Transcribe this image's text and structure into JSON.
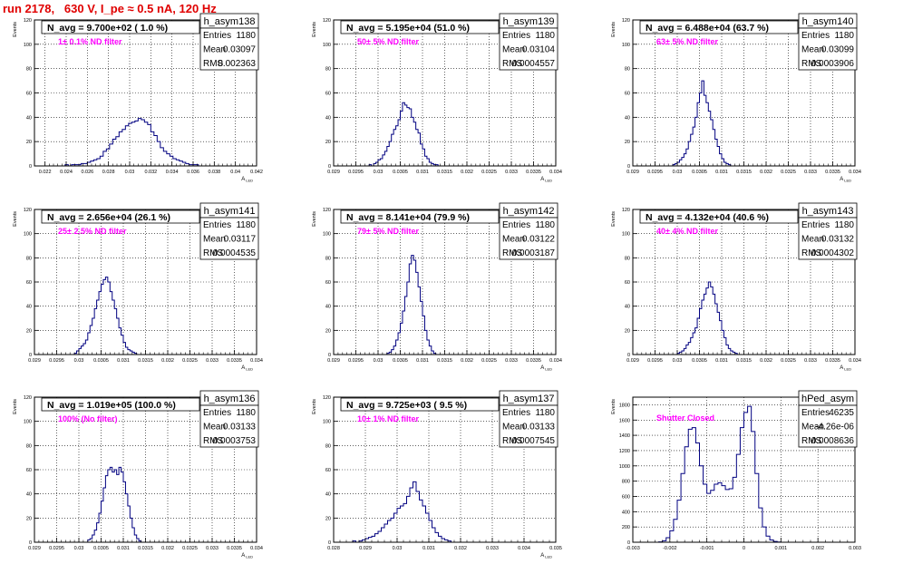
{
  "page_title": "run 2178,   630 V, I_pe ≈ 0.5 nA, 120 Hz",
  "stats_labels": {
    "entries": "Entries",
    "mean": "Mean",
    "rms": "RMS"
  },
  "colors": {
    "histogram": "#000080",
    "title": "#e00000",
    "annotation": "#ff00ff",
    "grid": "#000000"
  },
  "chart_data": [
    {
      "type": "histogram",
      "name": "h_asym138",
      "title": "N_avg = 9.700e+02 ( 1.0 %)",
      "annotation": "1± 0.1% ND filter",
      "stats": {
        "entries": "1180",
        "mean": "0.03097",
        "rms": "0.002363"
      },
      "xlabel": "A_LED",
      "ylabel": "Events",
      "xlim": [
        0.021,
        0.042
      ],
      "ylim": [
        0,
        120
      ],
      "xticks": [
        0.022,
        0.024,
        0.026,
        0.028,
        0.03,
        0.032,
        0.034,
        0.036,
        0.038,
        0.04,
        0.042
      ],
      "xtick_labels": [
        "0.022",
        "0.024",
        "0.026",
        "0.028",
        "0.03",
        "0.032",
        "0.034",
        "0.036",
        "0.038",
        "0.04",
        "0.042"
      ],
      "yticks": [
        0,
        20,
        40,
        60,
        80,
        100,
        120
      ],
      "yticks_labels": [
        "0",
        "20",
        "40",
        "60",
        "80",
        "100",
        "120"
      ],
      "bins": {
        "start": 0.0236,
        "width": 0.0003,
        "counts": [
          0,
          1,
          0,
          1,
          1,
          1,
          2,
          2,
          3,
          4,
          5,
          6,
          8,
          12,
          14,
          18,
          22,
          24,
          28,
          30,
          33,
          35,
          36,
          37,
          39,
          38,
          36,
          34,
          28,
          25,
          20,
          15,
          12,
          10,
          8,
          6,
          5,
          4,
          3,
          2,
          1,
          1,
          1,
          0,
          0
        ]
      }
    },
    {
      "type": "histogram",
      "name": "h_asym139",
      "title": "N_avg = 5.195e+04 (51.0 %)",
      "annotation": "50± 5% ND filter",
      "stats": {
        "entries": "1180",
        "mean": "0.03104",
        "rms": "0.0004557"
      },
      "xlabel": "A_LED",
      "ylabel": "Events",
      "xlim": [
        0.029,
        0.034
      ],
      "ylim": [
        0,
        120
      ],
      "xticks": [
        0.029,
        0.0295,
        0.03,
        0.0305,
        0.031,
        0.0315,
        0.032,
        0.0325,
        0.033,
        0.0335,
        0.034
      ],
      "xtick_labels": [
        "0.029",
        "0.0295",
        "0.03",
        "0.0305",
        "0.031",
        "0.0315",
        "0.032",
        "0.0325",
        "0.033",
        "0.0335",
        "0.034"
      ],
      "yticks": [
        0,
        20,
        40,
        60,
        80,
        100,
        120
      ],
      "yticks_labels": [
        "0",
        "20",
        "40",
        "60",
        "80",
        "100",
        "120"
      ],
      "bins": {
        "start": 0.0298,
        "width": 5e-05,
        "counts": [
          1,
          0,
          2,
          3,
          5,
          6,
          9,
          12,
          16,
          20,
          26,
          30,
          33,
          38,
          45,
          52,
          50,
          48,
          47,
          40,
          36,
          30,
          27,
          18,
          14,
          8,
          6,
          3,
          2,
          1,
          1,
          0
        ]
      }
    },
    {
      "type": "histogram",
      "name": "h_asym140",
      "title": "N_avg = 6.488e+04 (63.7 %)",
      "annotation": "63± 5% ND filter",
      "stats": {
        "entries": "1180",
        "mean": "0.03099",
        "rms": "0.0003906"
      },
      "xlabel": "A_LED",
      "ylabel": "Events",
      "xlim": [
        0.029,
        0.034
      ],
      "ylim": [
        0,
        120
      ],
      "xticks": [
        0.029,
        0.0295,
        0.03,
        0.0305,
        0.031,
        0.0315,
        0.032,
        0.0325,
        0.033,
        0.0335,
        0.034
      ],
      "xtick_labels": [
        "0.029",
        "0.0295",
        "0.03",
        "0.0305",
        "0.031",
        "0.0315",
        "0.032",
        "0.0325",
        "0.033",
        "0.0335",
        "0.034"
      ],
      "yticks": [
        0,
        20,
        40,
        60,
        80,
        100,
        120
      ],
      "yticks_labels": [
        "0",
        "20",
        "40",
        "60",
        "80",
        "100",
        "120"
      ],
      "bins": {
        "start": 0.0299,
        "width": 5e-05,
        "counts": [
          1,
          2,
          3,
          5,
          7,
          10,
          14,
          20,
          26,
          32,
          40,
          52,
          60,
          70,
          58,
          52,
          45,
          38,
          30,
          22,
          16,
          10,
          6,
          3,
          2,
          1,
          0
        ]
      }
    },
    {
      "type": "histogram",
      "name": "h_asym141",
      "title": "N_avg = 2.656e+04 (26.1 %)",
      "annotation": "25± 2.5% ND filter",
      "stats": {
        "entries": "1180",
        "mean": "0.03117",
        "rms": "0.0004535"
      },
      "xlabel": "A_LED",
      "ylabel": "Events",
      "xlim": [
        0.029,
        0.034
      ],
      "ylim": [
        0,
        120
      ],
      "xticks": [
        0.029,
        0.0295,
        0.03,
        0.0305,
        0.031,
        0.0315,
        0.032,
        0.0325,
        0.033,
        0.0335,
        0.034
      ],
      "xtick_labels": [
        "0.029",
        "0.0295",
        "0.03",
        "0.0305",
        "0.031",
        "0.0315",
        "0.032",
        "0.0325",
        "0.033",
        "0.0335",
        "0.034"
      ],
      "yticks": [
        0,
        20,
        40,
        60,
        80,
        100,
        120
      ],
      "yticks_labels": [
        "0",
        "20",
        "40",
        "60",
        "80",
        "100",
        "120"
      ],
      "bins": {
        "start": 0.0299,
        "width": 5e-05,
        "counts": [
          1,
          3,
          5,
          7,
          9,
          12,
          18,
          24,
          30,
          38,
          45,
          52,
          58,
          62,
          64,
          60,
          52,
          45,
          38,
          30,
          22,
          16,
          10,
          6,
          4,
          3,
          2,
          1,
          0
        ]
      }
    },
    {
      "type": "histogram",
      "name": "h_asym142",
      "title": "N_avg = 8.141e+04 (79.9 %)",
      "annotation": "79± 5% ND filter",
      "stats": {
        "entries": "1180",
        "mean": "0.03122",
        "rms": "0.0003187"
      },
      "xlabel": "A_LED",
      "ylabel": "Events",
      "xlim": [
        0.029,
        0.034
      ],
      "ylim": [
        0,
        120
      ],
      "xticks": [
        0.029,
        0.0295,
        0.03,
        0.0305,
        0.031,
        0.0315,
        0.032,
        0.0325,
        0.033,
        0.0335,
        0.034
      ],
      "xtick_labels": [
        "0.029",
        "0.0295",
        "0.03",
        "0.0305",
        "0.031",
        "0.0315",
        "0.032",
        "0.0325",
        "0.033",
        "0.0335",
        "0.034"
      ],
      "yticks": [
        0,
        20,
        40,
        60,
        80,
        100,
        120
      ],
      "yticks_labels": [
        "0",
        "20",
        "40",
        "60",
        "80",
        "100",
        "120"
      ],
      "bins": {
        "start": 0.0302,
        "width": 5e-05,
        "counts": [
          1,
          2,
          4,
          7,
          12,
          18,
          26,
          36,
          48,
          60,
          75,
          82,
          78,
          68,
          56,
          44,
          32,
          20,
          12,
          7,
          3,
          1,
          0
        ]
      }
    },
    {
      "type": "histogram",
      "name": "h_asym143",
      "title": "N_avg = 4.132e+04 (40.6 %)",
      "annotation": "40± 4% ND filter",
      "stats": {
        "entries": "1180",
        "mean": "0.03132",
        "rms": "0.0004302"
      },
      "xlabel": "A_LED",
      "ylabel": "Events",
      "xlim": [
        0.029,
        0.034
      ],
      "ylim": [
        0,
        120
      ],
      "xticks": [
        0.029,
        0.0295,
        0.03,
        0.0305,
        0.031,
        0.0315,
        0.032,
        0.0325,
        0.033,
        0.0335,
        0.034
      ],
      "xtick_labels": [
        "0.029",
        "0.0295",
        "0.03",
        "0.0305",
        "0.031",
        "0.0315",
        "0.032",
        "0.0325",
        "0.033",
        "0.0335",
        "0.034"
      ],
      "yticks": [
        0,
        20,
        40,
        60,
        80,
        100,
        120
      ],
      "yticks_labels": [
        "0",
        "20",
        "40",
        "60",
        "80",
        "100",
        "120"
      ],
      "bins": {
        "start": 0.03,
        "width": 5e-05,
        "counts": [
          1,
          2,
          3,
          5,
          8,
          10,
          14,
          18,
          22,
          30,
          38,
          45,
          50,
          55,
          60,
          56,
          50,
          42,
          35,
          28,
          20,
          14,
          8,
          5,
          3,
          2,
          1,
          0
        ]
      }
    },
    {
      "type": "histogram",
      "name": "h_asym136",
      "title": "N_avg = 1.019e+05 (100.0 %)",
      "annotation": "100% (No filter)",
      "stats": {
        "entries": "1180",
        "mean": "0.03133",
        "rms": "0.0003753"
      },
      "xlabel": "A_LED",
      "ylabel": "Events",
      "xlim": [
        0.029,
        0.034
      ],
      "ylim": [
        0,
        120
      ],
      "xticks": [
        0.029,
        0.0295,
        0.03,
        0.0305,
        0.031,
        0.0315,
        0.032,
        0.0325,
        0.033,
        0.0335,
        0.034
      ],
      "xtick_labels": [
        "0.029",
        "0.0295",
        "0.03",
        "0.0305",
        "0.031",
        "0.0315",
        "0.032",
        "0.0325",
        "0.033",
        "0.0335",
        "0.034"
      ],
      "yticks": [
        0,
        20,
        40,
        60,
        80,
        100,
        120
      ],
      "yticks_labels": [
        "0",
        "20",
        "40",
        "60",
        "80",
        "100",
        "120"
      ],
      "bins": {
        "start": 0.0302,
        "width": 5e-05,
        "counts": [
          2,
          3,
          6,
          10,
          16,
          24,
          34,
          45,
          55,
          60,
          62,
          58,
          60,
          56,
          62,
          58,
          50,
          40,
          30,
          20,
          12,
          6,
          3,
          1,
          0
        ]
      }
    },
    {
      "type": "histogram",
      "name": "h_asym137",
      "title": "N_avg = 9.725e+03 ( 9.5 %)",
      "annotation": "10± 1% ND filter",
      "stats": {
        "entries": "1180",
        "mean": "0.03133",
        "rms": "0.0007545"
      },
      "xlabel": "A_LED",
      "ylabel": "Events",
      "xlim": [
        0.028,
        0.035
      ],
      "ylim": [
        0,
        120
      ],
      "xticks": [
        0.028,
        0.029,
        0.03,
        0.031,
        0.032,
        0.033,
        0.034,
        0.035
      ],
      "xtick_labels": [
        "0.028",
        "0.029",
        "0.03",
        "0.031",
        "0.032",
        "0.033",
        "0.034",
        "0.035"
      ],
      "yticks": [
        0,
        20,
        40,
        60,
        80,
        100,
        120
      ],
      "yticks_labels": [
        "0",
        "20",
        "40",
        "60",
        "80",
        "100",
        "120"
      ],
      "bins": {
        "start": 0.0286,
        "width": 0.0001,
        "counts": [
          1,
          0,
          1,
          2,
          3,
          4,
          5,
          7,
          9,
          12,
          15,
          18,
          20,
          24,
          28,
          30,
          32,
          38,
          45,
          50,
          42,
          35,
          30,
          24,
          18,
          12,
          8,
          5,
          3,
          2,
          1,
          0
        ]
      }
    },
    {
      "type": "histogram",
      "name": "hPed_asym",
      "title": "",
      "annotation": "Shutter Closed",
      "stats": {
        "entries": "46235",
        "mean": "-4.26e-06",
        "rms": "0.0008636"
      },
      "xlabel": "",
      "ylabel": "Events",
      "xlim": [
        -0.003,
        0.003
      ],
      "ylim": [
        0,
        1900
      ],
      "xticks": [
        -0.003,
        -0.002,
        -0.001,
        0,
        0.001,
        0.002,
        0.003
      ],
      "xtick_labels": [
        "-0.003",
        "-0.002",
        "-0.001",
        "0",
        "0.001",
        "0.002",
        "0.003"
      ],
      "yticks": [
        0,
        200,
        400,
        600,
        800,
        1000,
        1200,
        1400,
        1600,
        1800
      ],
      "yticks_labels": [
        "0",
        "200",
        "400",
        "600",
        "800",
        "1000",
        "1200",
        "1400",
        "1600",
        "1800"
      ],
      "bins": {
        "start": -0.0023,
        "width": 0.0001,
        "counts": [
          5,
          20,
          60,
          150,
          300,
          550,
          900,
          1250,
          1480,
          1500,
          1300,
          1000,
          760,
          640,
          680,
          760,
          780,
          740,
          690,
          700,
          850,
          1150,
          1500,
          1700,
          1780,
          1450,
          900,
          450,
          200,
          80,
          30,
          10,
          3,
          0
        ]
      }
    }
  ]
}
